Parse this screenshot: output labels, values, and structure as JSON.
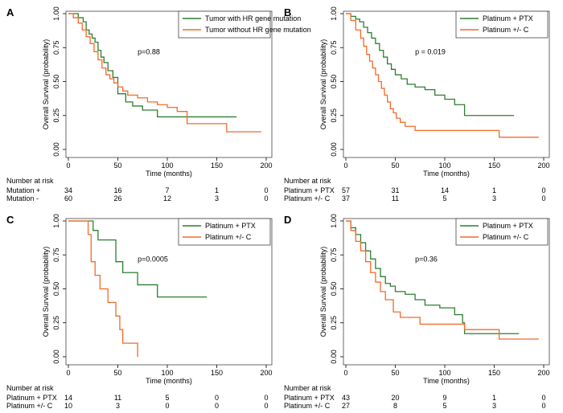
{
  "colors": {
    "green": "#2f7d32",
    "orange": "#f26b2a",
    "axis": "#000000",
    "frame": "#444444"
  },
  "panels": [
    {
      "letter": "A",
      "pvalue": "p=0.88",
      "risk_title": "Number at risk",
      "chart_data": {
        "type": "line",
        "title": "",
        "xlabel": "Time (months)",
        "ylabel": "Overall Survival (probability)",
        "xlim": [
          0,
          200
        ],
        "ylim": [
          0,
          1
        ],
        "xticks": [
          0,
          50,
          100,
          150,
          200
        ],
        "yticks": [
          "0.00",
          "0.25",
          "0.50",
          "0.75",
          "1.00"
        ],
        "legend": "top-right",
        "series": [
          {
            "name": "Tumor with HR gene mutation",
            "color": "green",
            "x": [
              0,
              10,
              15,
              18,
              21,
              24,
              27,
              30,
              33,
              36,
              40,
              45,
              50,
              58,
              65,
              75,
              90,
              100,
              110,
              120,
              170
            ],
            "y": [
              1,
              0.97,
              0.94,
              0.88,
              0.85,
              0.82,
              0.79,
              0.73,
              0.68,
              0.64,
              0.58,
              0.53,
              0.41,
              0.35,
              0.32,
              0.29,
              0.24,
              0.24,
              0.24,
              0.24,
              0.24
            ]
          },
          {
            "name": "Tumor without HR gene mutation",
            "color": "orange",
            "x": [
              0,
              5,
              10,
              14,
              18,
              22,
              26,
              30,
              34,
              38,
              42,
              46,
              50,
              55,
              60,
              70,
              80,
              90,
              100,
              110,
              120,
              155,
              160,
              195
            ],
            "y": [
              1,
              0.97,
              0.93,
              0.88,
              0.83,
              0.78,
              0.72,
              0.66,
              0.6,
              0.55,
              0.52,
              0.49,
              0.46,
              0.43,
              0.4,
              0.38,
              0.35,
              0.33,
              0.31,
              0.28,
              0.19,
              0.19,
              0.13,
              0.13
            ]
          }
        ]
      },
      "risk_table": {
        "times": [
          0,
          50,
          100,
          150,
          200
        ],
        "rows": [
          {
            "label": "Mutation +",
            "values": [
              "34",
              "16",
              "7",
              "1",
              "0"
            ]
          },
          {
            "label": "Mutation -",
            "values": [
              "60",
              "26",
              "12",
              "3",
              "0"
            ]
          }
        ]
      }
    },
    {
      "letter": "B",
      "pvalue": "p = 0.019",
      "risk_title": "Number at risk",
      "chart_data": {
        "type": "line",
        "title": "",
        "xlabel": "Time (months)",
        "ylabel": "Overall Survival (probability)",
        "xlim": [
          0,
          200
        ],
        "ylim": [
          0,
          1
        ],
        "xticks": [
          0,
          50,
          100,
          150,
          200
        ],
        "yticks": [
          "0.00",
          "0.25",
          "0.50",
          "0.75",
          "1.00"
        ],
        "legend": "top-right",
        "series": [
          {
            "name": "Platinum + PTX",
            "color": "green",
            "x": [
              0,
              5,
              10,
              14,
              18,
              22,
              26,
              30,
              34,
              38,
              42,
              46,
              50,
              56,
              62,
              70,
              80,
              90,
              100,
              110,
              120,
              170
            ],
            "y": [
              1,
              0.98,
              0.96,
              0.94,
              0.9,
              0.86,
              0.82,
              0.78,
              0.73,
              0.68,
              0.63,
              0.59,
              0.55,
              0.52,
              0.48,
              0.46,
              0.44,
              0.4,
              0.37,
              0.33,
              0.25,
              0.25
            ]
          },
          {
            "name": "Platinum +/- C",
            "color": "orange",
            "x": [
              0,
              5,
              10,
              15,
              18,
              21,
              24,
              27,
              30,
              33,
              36,
              39,
              42,
              45,
              48,
              51,
              55,
              60,
              70,
              80,
              120,
              155,
              195
            ],
            "y": [
              1,
              0.95,
              0.88,
              0.82,
              0.76,
              0.7,
              0.65,
              0.6,
              0.55,
              0.5,
              0.45,
              0.4,
              0.35,
              0.3,
              0.27,
              0.23,
              0.2,
              0.17,
              0.14,
              0.14,
              0.14,
              0.09,
              0.09
            ]
          }
        ]
      },
      "risk_table": {
        "times": [
          0,
          50,
          100,
          150,
          200
        ],
        "rows": [
          {
            "label": "Platinum + PTX",
            "values": [
              "57",
              "31",
              "14",
              "1",
              "0"
            ]
          },
          {
            "label": "Platinum +/- C",
            "values": [
              "37",
              "11",
              "5",
              "3",
              "0"
            ]
          }
        ]
      }
    },
    {
      "letter": "C",
      "pvalue": "p=0.0005",
      "risk_title": "Number at risk",
      "chart_data": {
        "type": "line",
        "title": "",
        "xlabel": "Time (months)",
        "ylabel": "Overall Survival (probability)",
        "xlim": [
          0,
          200
        ],
        "ylim": [
          0,
          1
        ],
        "xticks": [
          0,
          50,
          100,
          150,
          200
        ],
        "yticks": [
          "0.00",
          "0.25",
          "0.50",
          "0.75",
          "1.00"
        ],
        "legend": "top-right",
        "series": [
          {
            "name": "Platinum + PTX",
            "color": "green",
            "x": [
              0,
              25,
              30,
              48,
              55,
              70,
              90,
              140
            ],
            "y": [
              1,
              0.93,
              0.86,
              0.7,
              0.62,
              0.53,
              0.44,
              0.44
            ]
          },
          {
            "name": "Platinum +/- C",
            "color": "orange",
            "x": [
              0,
              20,
              23,
              27,
              32,
              40,
              48,
              52,
              55,
              70
            ],
            "y": [
              1,
              0.9,
              0.7,
              0.6,
              0.5,
              0.4,
              0.3,
              0.2,
              0.1,
              0
            ]
          }
        ]
      },
      "risk_table": {
        "times": [
          0,
          50,
          100,
          150,
          200
        ],
        "rows": [
          {
            "label": "Platinum + PTX",
            "values": [
              "14",
              "11",
              "5",
              "0",
              "0"
            ]
          },
          {
            "label": "Platinum +/- C",
            "values": [
              "10",
              "3",
              "0",
              "0",
              "0"
            ]
          }
        ]
      }
    },
    {
      "letter": "D",
      "pvalue": "p=0.36",
      "risk_title": "Number at risk",
      "chart_data": {
        "type": "line",
        "title": "",
        "xlabel": "Time (months)",
        "ylabel": "Overall Survival (probability)",
        "xlim": [
          0,
          200
        ],
        "ylim": [
          0,
          1
        ],
        "xticks": [
          0,
          50,
          100,
          150,
          200
        ],
        "yticks": [
          "0.00",
          "0.25",
          "0.50",
          "0.75",
          "1.00"
        ],
        "legend": "top-right",
        "series": [
          {
            "name": "Platinum + PTX",
            "color": "green",
            "x": [
              0,
              5,
              10,
              15,
              20,
              25,
              30,
              35,
              40,
              45,
              50,
              60,
              70,
              80,
              95,
              110,
              118,
              120,
              160,
              175
            ],
            "y": [
              1,
              0.95,
              0.9,
              0.84,
              0.78,
              0.72,
              0.65,
              0.59,
              0.54,
              0.52,
              0.48,
              0.46,
              0.42,
              0.38,
              0.36,
              0.31,
              0.25,
              0.17,
              0.17,
              0.17
            ]
          },
          {
            "name": "Platinum +/- C",
            "color": "orange",
            "x": [
              0,
              5,
              10,
              15,
              20,
              25,
              30,
              35,
              40,
              48,
              55,
              75,
              120,
              155,
              195
            ],
            "y": [
              1,
              0.93,
              0.85,
              0.78,
              0.7,
              0.62,
              0.55,
              0.48,
              0.42,
              0.33,
              0.29,
              0.24,
              0.2,
              0.13,
              0.13
            ]
          }
        ]
      },
      "risk_table": {
        "times": [
          0,
          50,
          100,
          150,
          200
        ],
        "rows": [
          {
            "label": "Platinum + PTX",
            "values": [
              "43",
              "20",
              "9",
              "1",
              "0"
            ]
          },
          {
            "label": "Platinum +/- C",
            "values": [
              "27",
              "8",
              "5",
              "3",
              "0"
            ]
          }
        ]
      }
    }
  ]
}
